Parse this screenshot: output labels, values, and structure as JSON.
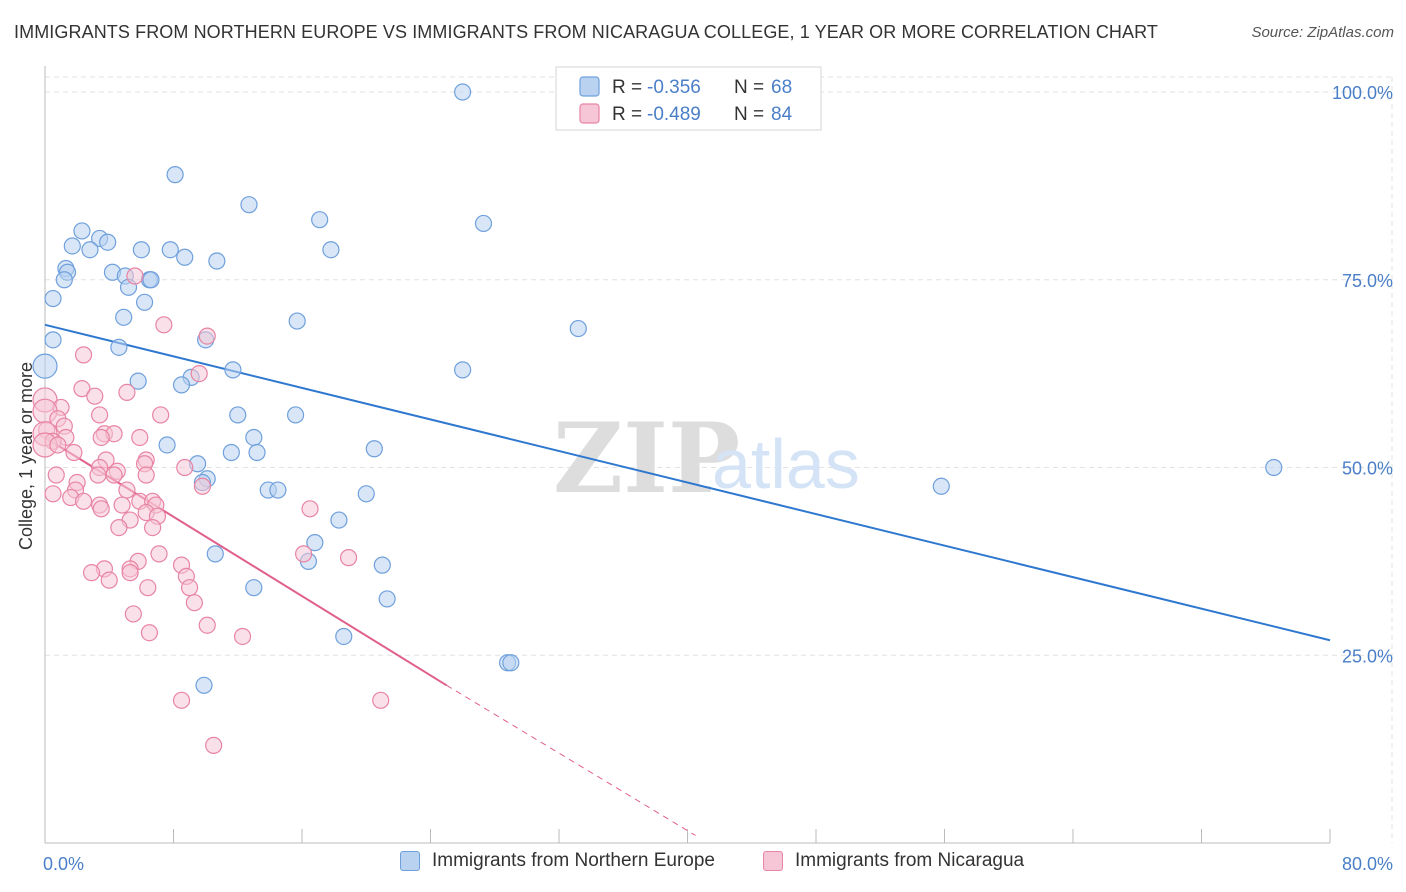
{
  "title": "IMMIGRANTS FROM NORTHERN EUROPE VS IMMIGRANTS FROM NICARAGUA COLLEGE, 1 YEAR OR MORE CORRELATION CHART",
  "source": "Source: ZipAtlas.com",
  "watermark": {
    "zip": "ZIP",
    "atlas": "atlas"
  },
  "colors": {
    "blue": "#6fa0dc",
    "blue_fill": "#b8d2f0",
    "blue_line": "#2f78d0",
    "pink": "#e884a4",
    "pink_fill": "#f6c6d6",
    "pink_line": "#e0608a",
    "axis_label": "#4a7fc8",
    "grid": "#e2e2e2"
  },
  "legend": [
    {
      "series": "blue",
      "r_label": "R = ",
      "r_value": "-0.356",
      "n_label": "N = ",
      "n_value": "68"
    },
    {
      "series": "pink",
      "r_label": "R = ",
      "r_value": "-0.489",
      "n_label": "N = ",
      "n_value": "84"
    }
  ],
  "chart_data": {
    "type": "scatter",
    "title": "IMMIGRANTS FROM NORTHERN EUROPE VS IMMIGRANTS FROM NICARAGUA COLLEGE, 1 YEAR OR MORE CORRELATION CHART",
    "xlabel": "",
    "ylabel": "College, 1 year or more",
    "xlim": [
      0,
      80
    ],
    "ylim": [
      0,
      102
    ],
    "x_ticks": [
      "0.0%",
      "80.0%"
    ],
    "y_ticks": [
      {
        "value": 100,
        "label": "100.0%"
      },
      {
        "value": 75,
        "label": "75.0%"
      },
      {
        "value": 50,
        "label": "50.0%"
      },
      {
        "value": 25,
        "label": "25.0%"
      }
    ],
    "grid": true,
    "legend_position": "bottom",
    "series": [
      {
        "name": "Immigrants from Northern Europe",
        "color": "blue",
        "r": -0.356,
        "n": 68,
        "trend": {
          "x": [
            0,
            80
          ],
          "y": [
            69,
            27
          ]
        },
        "points": [
          [
            26,
            100
          ],
          [
            8.1,
            89
          ],
          [
            12.7,
            85
          ],
          [
            17.1,
            83
          ],
          [
            27.3,
            82.5
          ],
          [
            2.3,
            81.5
          ],
          [
            3.4,
            80.5
          ],
          [
            3.9,
            80
          ],
          [
            1.7,
            79.5
          ],
          [
            2.8,
            79
          ],
          [
            6,
            79
          ],
          [
            7.8,
            79
          ],
          [
            17.8,
            79
          ],
          [
            8.7,
            78
          ],
          [
            10.7,
            77.5
          ],
          [
            1.3,
            76.5
          ],
          [
            1.4,
            76
          ],
          [
            4.2,
            76
          ],
          [
            5,
            75.5
          ],
          [
            6.5,
            75
          ],
          [
            6.6,
            75
          ],
          [
            1.2,
            75
          ],
          [
            5.2,
            74
          ],
          [
            0.5,
            72.5
          ],
          [
            6.2,
            72
          ],
          [
            4.9,
            70
          ],
          [
            15.7,
            69.5
          ],
          [
            33.2,
            68.5
          ],
          [
            10,
            67
          ],
          [
            0.5,
            67
          ],
          [
            4.6,
            66
          ],
          [
            0,
            63.5
          ],
          [
            11.7,
            63
          ],
          [
            26,
            63
          ],
          [
            9.1,
            62
          ],
          [
            5.8,
            61.5
          ],
          [
            8.5,
            61
          ],
          [
            12,
            57
          ],
          [
            15.6,
            57
          ],
          [
            13,
            54
          ],
          [
            7.6,
            53
          ],
          [
            20.5,
            52.5
          ],
          [
            11.6,
            52
          ],
          [
            13.2,
            52
          ],
          [
            9.5,
            50.5
          ],
          [
            76.5,
            50
          ],
          [
            10.1,
            48.5
          ],
          [
            9.8,
            48
          ],
          [
            55.8,
            47.5
          ],
          [
            13.9,
            47
          ],
          [
            14.5,
            47
          ],
          [
            20,
            46.5
          ],
          [
            18.3,
            43
          ],
          [
            16.8,
            40
          ],
          [
            10.6,
            38.5
          ],
          [
            16.4,
            37.5
          ],
          [
            21,
            37
          ],
          [
            13,
            34
          ],
          [
            21.3,
            32.5
          ],
          [
            18.6,
            27.5
          ],
          [
            28.8,
            24
          ],
          [
            29,
            24
          ],
          [
            9.9,
            21
          ]
        ]
      },
      {
        "name": "Immigrants from Nicaragua",
        "color": "pink",
        "r": -0.489,
        "n": 84,
        "trend": {
          "x": [
            0,
            25
          ],
          "y": [
            54,
            21
          ]
        },
        "trend_dashed": {
          "x": [
            25,
            40.5
          ],
          "y": [
            21,
            1
          ]
        },
        "points": [
          [
            5.6,
            75.5
          ],
          [
            7.4,
            69
          ],
          [
            10.1,
            67.5
          ],
          [
            2.4,
            65
          ],
          [
            9.6,
            62.5
          ],
          [
            2.3,
            60.5
          ],
          [
            5.1,
            60
          ],
          [
            3.1,
            59.5
          ],
          [
            0,
            59
          ],
          [
            1,
            58
          ],
          [
            0,
            57.5
          ],
          [
            3.4,
            57
          ],
          [
            7.2,
            57
          ],
          [
            0.8,
            56.5
          ],
          [
            1.2,
            55.5
          ],
          [
            0.1,
            55
          ],
          [
            0,
            54.5
          ],
          [
            3.7,
            54.5
          ],
          [
            4.3,
            54.5
          ],
          [
            3.5,
            54
          ],
          [
            1.3,
            54
          ],
          [
            5.9,
            54
          ],
          [
            0.5,
            53.5
          ],
          [
            0,
            53
          ],
          [
            0.8,
            53
          ],
          [
            1.8,
            52
          ],
          [
            3.8,
            51
          ],
          [
            6.3,
            51
          ],
          [
            6.2,
            50.5
          ],
          [
            8.7,
            50
          ],
          [
            3.4,
            50
          ],
          [
            4.5,
            49.5
          ],
          [
            0.7,
            49
          ],
          [
            3.3,
            49
          ],
          [
            4.3,
            49
          ],
          [
            6.3,
            49
          ],
          [
            2,
            48
          ],
          [
            9.8,
            47.5
          ],
          [
            1.9,
            47
          ],
          [
            5.1,
            47
          ],
          [
            0.5,
            46.5
          ],
          [
            1.6,
            46
          ],
          [
            2.4,
            45.5
          ],
          [
            5.9,
            45.5
          ],
          [
            6.7,
            45.5
          ],
          [
            3.4,
            45
          ],
          [
            4.8,
            45
          ],
          [
            6.9,
            45
          ],
          [
            3.5,
            44.5
          ],
          [
            16.5,
            44.5
          ],
          [
            6.3,
            44
          ],
          [
            7,
            43.5
          ],
          [
            5.3,
            43
          ],
          [
            4.6,
            42
          ],
          [
            6.7,
            42
          ],
          [
            16.1,
            38.5
          ],
          [
            7.1,
            38.5
          ],
          [
            18.9,
            38
          ],
          [
            5.8,
            37.5
          ],
          [
            8.5,
            37
          ],
          [
            3.7,
            36.5
          ],
          [
            5.3,
            36.5
          ],
          [
            2.9,
            36
          ],
          [
            5.3,
            36
          ],
          [
            8.8,
            35.5
          ],
          [
            4,
            35
          ],
          [
            9,
            34
          ],
          [
            6.4,
            34
          ],
          [
            9.3,
            32
          ],
          [
            5.5,
            30.5
          ],
          [
            10.1,
            29
          ],
          [
            6.5,
            28
          ],
          [
            12.3,
            27.5
          ],
          [
            8.5,
            19
          ],
          [
            20.9,
            19
          ],
          [
            10.5,
            13
          ]
        ]
      }
    ]
  }
}
